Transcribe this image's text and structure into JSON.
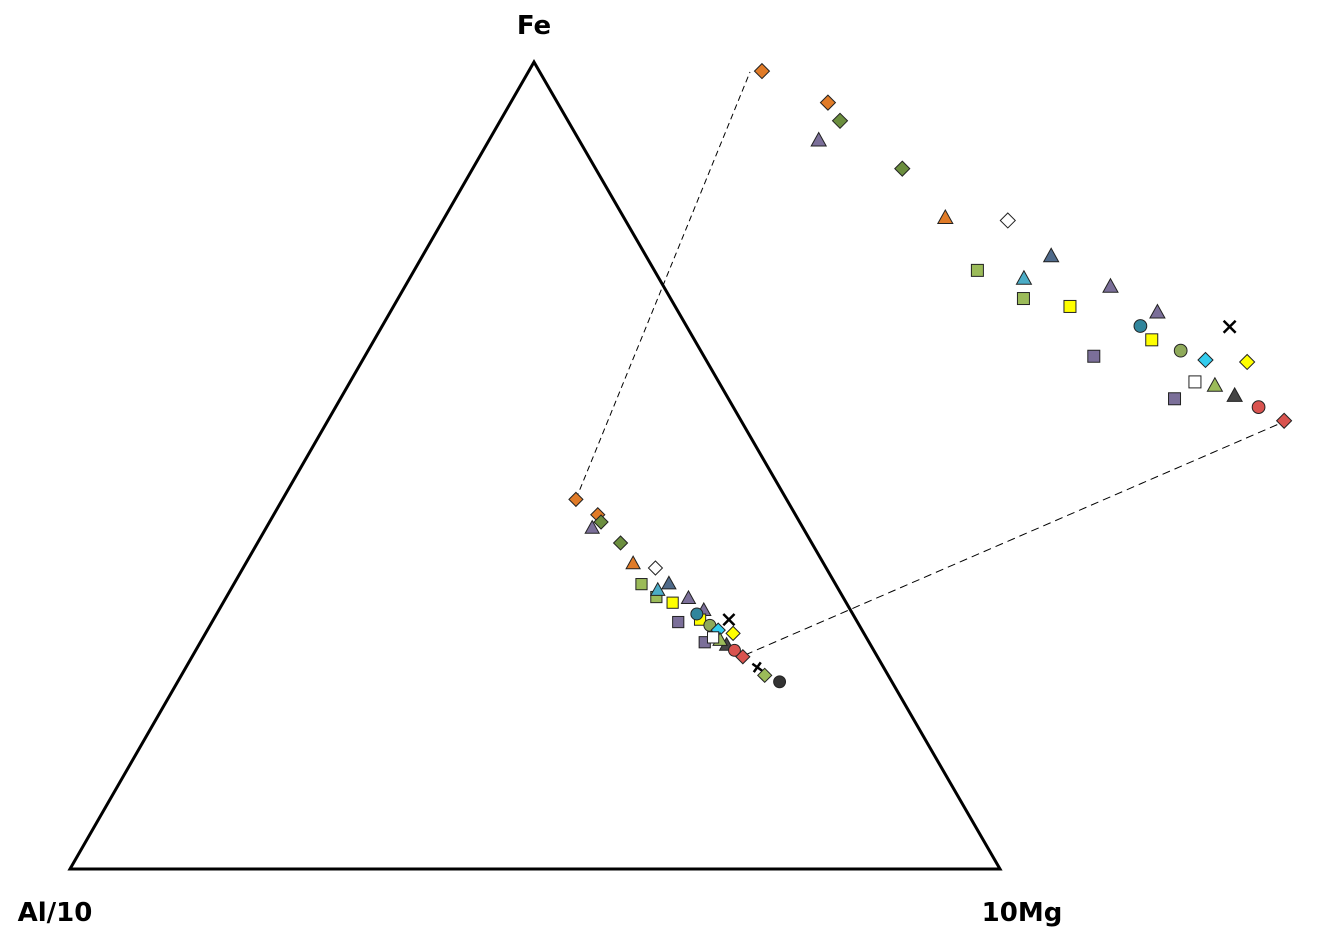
{
  "chart_data": {
    "type": "ternary",
    "axes": {
      "top": "Fe",
      "left": "Al/10",
      "right": "10Mg"
    },
    "series": [
      {
        "marker": "diamond",
        "color": "#e07b28",
        "fe": [
          45.8,
          43.9
        ],
        "al": [
          22.7,
          21.3
        ],
        "mg": [
          31.5,
          34.8
        ]
      },
      {
        "marker": "triangle",
        "color": "#7b6f99",
        "fe": [
          42.3,
          33.6,
          32.1
        ],
        "al": [
          22.7,
          16.7,
          15.8
        ],
        "mg": [
          35.0,
          49.7,
          52.1
        ]
      },
      {
        "marker": "diamond",
        "color": "#6b8e3e",
        "fe": [
          43.0,
          40.4
        ],
        "al": [
          21.4,
          20.6
        ],
        "mg": [
          35.6,
          39.0
        ]
      },
      {
        "marker": "triangle",
        "color": "#e07b28",
        "fe": [
          37.9
        ],
        "al": [
          20.5
        ],
        "mg": [
          41.6
        ]
      },
      {
        "marker": "diamond",
        "color": "#ffffff",
        "fe": [
          37.3
        ],
        "al": [
          18.4
        ],
        "mg": [
          44.3
        ]
      },
      {
        "marker": "square",
        "color": "#9bbb59",
        "fe": [
          35.3,
          33.7
        ],
        "al": [
          20.9,
          20.1
        ],
        "mg": [
          43.8,
          46.2
        ]
      },
      {
        "marker": "triangle",
        "color": "#4bacc6",
        "fe": [
          34.6
        ],
        "al": [
          19.5
        ],
        "mg": [
          45.9
        ]
      },
      {
        "marker": "triangle",
        "color": "#4f6a8a",
        "fe": [
          35.4
        ],
        "al": [
          17.9
        ],
        "mg": [
          46.7
        ]
      },
      {
        "marker": "square",
        "color": "#ffff00",
        "fe": [
          33.0,
          30.9
        ],
        "al": [
          18.7,
          16.8
        ],
        "mg": [
          48.3,
          52.3
        ]
      },
      {
        "marker": "square",
        "color": "#7b6f99",
        "fe": [
          30.6,
          28.1
        ],
        "al": [
          19.3,
          17.7
        ],
        "mg": [
          50.1,
          54.2
        ]
      },
      {
        "marker": "circle",
        "color": "#31859c",
        "fe": [
          31.6
        ],
        "al": [
          16.8
        ],
        "mg": [
          51.6
        ]
      },
      {
        "marker": "circle",
        "color": "#8faa5a",
        "fe": [
          30.2
        ],
        "al": [
          16.1
        ],
        "mg": [
          53.7
        ]
      },
      {
        "marker": "diamond",
        "color": "#33ccee",
        "fe": [
          29.6
        ],
        "al": [
          15.5
        ],
        "mg": [
          54.9
        ]
      },
      {
        "marker": "x",
        "color": "#000000",
        "fe": [
          30.9
        ],
        "al": [
          13.7
        ],
        "mg": [
          55.4
        ]
      },
      {
        "marker": "diamond",
        "color": "#ffff00",
        "fe": [
          29.2
        ],
        "al": [
          14.1
        ],
        "mg": [
          56.7
        ]
      },
      {
        "marker": "triangle",
        "color": "#444444",
        "fe": [
          27.8
        ],
        "al": [
          15.5
        ],
        "mg": [
          56.7
        ]
      },
      {
        "marker": "circle",
        "color": "#d9534f",
        "fe": [
          27.1
        ],
        "al": [
          15.0
        ],
        "mg": [
          57.9
        ]
      },
      {
        "marker": "diamond",
        "color": "#d9534f",
        "fe": [
          26.3
        ],
        "al": [
          14.5
        ],
        "mg": [
          59.2
        ]
      },
      {
        "marker": "plus",
        "color": "#000000",
        "fe": [
          25.0
        ],
        "al": [
          13.6
        ],
        "mg": [
          61.4
        ]
      },
      {
        "marker": "diamond",
        "color": "#9bbb59",
        "fe": [
          24.0
        ],
        "al": [
          13.3
        ],
        "mg": [
          62.7
        ]
      },
      {
        "marker": "circle",
        "color": "#333333",
        "fe": [
          23.2
        ],
        "al": [
          12.1
        ],
        "mg": [
          64.7
        ]
      },
      {
        "marker": "triangle",
        "color": "#9bbb59",
        "fe": [
          28.4
        ],
        "al": [
          15.9
        ],
        "mg": [
          55.7
        ]
      },
      {
        "marker": "square",
        "color": "#ffffff",
        "fe": [
          28.7
        ],
        "al": [
          16.5
        ],
        "mg": [
          54.8
        ]
      }
    ]
  }
}
